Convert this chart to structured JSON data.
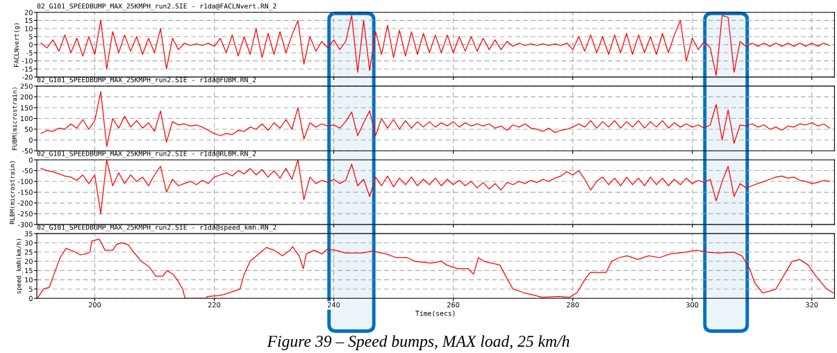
{
  "chart_data": [
    {
      "type": "line",
      "title": "02_G101_SPEEDBUMP_MAX_25KMPH_run2.SIE - r1da@FACLNvert.RN_2",
      "ylabel": "FACLNvert(g)",
      "x": [
        191,
        192,
        193,
        194,
        195,
        196,
        197,
        198,
        199,
        200,
        201,
        202,
        203,
        204,
        205,
        206,
        207,
        208,
        209,
        210,
        211,
        212,
        213,
        214,
        215,
        216,
        217,
        218,
        219,
        220,
        221,
        222,
        223,
        224,
        225,
        226,
        227,
        228,
        229,
        230,
        231,
        232,
        233,
        234,
        235,
        236,
        237,
        238,
        239,
        240,
        241,
        242,
        243,
        244,
        245,
        246,
        247,
        248,
        249,
        250,
        251,
        252,
        253,
        254,
        255,
        256,
        257,
        258,
        259,
        260,
        261,
        262,
        263,
        264,
        265,
        266,
        267,
        268,
        269,
        270,
        271,
        272,
        273,
        274,
        275,
        276,
        277,
        278,
        279,
        280,
        281,
        282,
        283,
        284,
        285,
        286,
        287,
        288,
        289,
        290,
        291,
        292,
        293,
        294,
        295,
        296,
        297,
        298,
        299,
        300,
        301,
        302,
        303,
        304,
        305,
        306,
        307,
        308,
        309,
        310,
        311,
        312,
        313,
        314,
        315,
        316,
        317,
        318,
        319,
        320,
        321,
        322,
        323
      ],
      "series": [
        {
          "color": "#ff0000",
          "values": [
            1,
            -2,
            3,
            -4,
            6,
            -5,
            4,
            -7,
            5,
            -6,
            15,
            -15,
            8,
            -5,
            6,
            -4,
            5,
            -6,
            4,
            -5,
            10,
            -15,
            4,
            -3,
            1,
            -0.5,
            0.5,
            -0.5,
            1,
            -1,
            4,
            -5,
            6,
            -7,
            5,
            -6,
            10,
            -8,
            7,
            -6,
            8,
            -5,
            6,
            15,
            -12,
            5,
            -4,
            2,
            -2,
            3,
            -3,
            2,
            18,
            -17,
            15,
            -16,
            8,
            -6,
            12,
            -8,
            9,
            -7,
            8,
            -6,
            7,
            -5,
            6,
            -5,
            6,
            -5,
            5,
            -4,
            5,
            -4,
            4,
            -3,
            3,
            -3,
            2,
            -1,
            1,
            -0.5,
            0.5,
            -0.5,
            0.5,
            -0.5,
            0.5,
            -0.5,
            1,
            -3,
            5,
            -4,
            6,
            -5,
            5,
            -6,
            6,
            -5,
            7,
            -6,
            6,
            -5,
            5,
            -6,
            7,
            -5,
            6,
            15,
            -10,
            4,
            -3,
            2,
            -2,
            -19,
            18,
            17,
            -17,
            2,
            -1,
            1,
            -1,
            1,
            -1,
            1,
            -1,
            1,
            -1,
            1,
            -1,
            1,
            -1,
            1,
            -0.5
          ]
        }
      ],
      "xlim": [
        190.3,
        323.8
      ],
      "xticks": [
        200,
        220,
        240,
        260,
        280,
        300,
        320
      ],
      "ylim": [
        -20,
        20
      ],
      "yticks": [
        -20,
        -15,
        -10,
        -5,
        0,
        5,
        10,
        15,
        20
      ],
      "grid": true,
      "tick_labels": "y",
      "bands": [
        {
          "axis": "x",
          "from": 239.2,
          "to": 246.7,
          "color": "#0070c0"
        },
        {
          "axis": "x",
          "from": 302.1,
          "to": 309.2,
          "color": "#0070c0"
        }
      ]
    },
    {
      "type": "line",
      "title": "02_G101_SPEEDBUMP_MAX_25KMPH_run2.SIE - r1da@FUBM.RN_2",
      "ylabel": "FUBM(microstrain)",
      "x": [
        191,
        192,
        193,
        194,
        195,
        196,
        197,
        198,
        199,
        200,
        201,
        202,
        203,
        204,
        205,
        206,
        207,
        208,
        209,
        210,
        211,
        212,
        213,
        214,
        215,
        216,
        217,
        218,
        219,
        220,
        221,
        222,
        223,
        224,
        225,
        226,
        227,
        228,
        229,
        230,
        231,
        232,
        233,
        234,
        235,
        236,
        237,
        238,
        239,
        240,
        241,
        242,
        243,
        244,
        245,
        246,
        247,
        248,
        249,
        250,
        251,
        252,
        253,
        254,
        255,
        256,
        257,
        258,
        259,
        260,
        261,
        262,
        263,
        264,
        265,
        266,
        267,
        268,
        269,
        270,
        271,
        272,
        273,
        274,
        275,
        276,
        277,
        278,
        279,
        280,
        281,
        282,
        283,
        284,
        285,
        286,
        287,
        288,
        289,
        290,
        291,
        292,
        293,
        294,
        295,
        296,
        297,
        298,
        299,
        300,
        301,
        302,
        303,
        304,
        305,
        306,
        307,
        308,
        309,
        310,
        311,
        312,
        313,
        314,
        315,
        316,
        317,
        318,
        319,
        320,
        321,
        322,
        323
      ],
      "series": [
        {
          "color": "#ff0000",
          "values": [
            30,
            45,
            40,
            55,
            50,
            75,
            55,
            95,
            50,
            90,
            225,
            -30,
            100,
            55,
            110,
            60,
            90,
            55,
            80,
            40,
            135,
            -10,
            85,
            70,
            75,
            65,
            70,
            60,
            45,
            30,
            20,
            30,
            25,
            45,
            40,
            60,
            50,
            75,
            45,
            80,
            55,
            95,
            50,
            150,
            5,
            80,
            60,
            75,
            65,
            70,
            55,
            85,
            130,
            20,
            80,
            135,
            20,
            100,
            55,
            95,
            50,
            90,
            55,
            85,
            60,
            85,
            60,
            80,
            65,
            85,
            60,
            80,
            65,
            75,
            65,
            75,
            55,
            65,
            45,
            70,
            60,
            75,
            55,
            50,
            40,
            55,
            35,
            45,
            50,
            60,
            75,
            60,
            90,
            55,
            85,
            60,
            90,
            55,
            85,
            60,
            90,
            55,
            85,
            60,
            90,
            55,
            80,
            60,
            75,
            60,
            70,
            55,
            70,
            165,
            0,
            140,
            -15,
            70,
            65,
            75,
            60,
            70,
            50,
            60,
            45,
            65,
            60,
            75,
            70,
            80,
            65,
            75,
            55
          ]
        }
      ],
      "xlim": [
        190.3,
        323.8
      ],
      "xticks": [
        200,
        220,
        240,
        260,
        280,
        300,
        320
      ],
      "ylim": [
        -50,
        250
      ],
      "yticks": [
        -50,
        0,
        50,
        100,
        150,
        200,
        250
      ],
      "grid": true,
      "tick_labels": "y"
    },
    {
      "type": "line",
      "title": "02_G101_SPEEDBUMP_MAX_25KMPH_run2.SIE - r1da@RLBM.RN_2",
      "ylabel": "RLBM(microstrain)",
      "x": [
        191,
        192,
        193,
        194,
        195,
        196,
        197,
        198,
        199,
        200,
        201,
        202,
        203,
        204,
        205,
        206,
        207,
        208,
        209,
        210,
        211,
        212,
        213,
        214,
        215,
        216,
        217,
        218,
        219,
        220,
        221,
        222,
        223,
        224,
        225,
        226,
        227,
        228,
        229,
        230,
        231,
        232,
        233,
        234,
        235,
        236,
        237,
        238,
        239,
        240,
        241,
        242,
        243,
        244,
        245,
        246,
        247,
        248,
        249,
        250,
        251,
        252,
        253,
        254,
        255,
        256,
        257,
        258,
        259,
        260,
        261,
        262,
        263,
        264,
        265,
        266,
        267,
        268,
        269,
        270,
        271,
        272,
        273,
        274,
        275,
        276,
        277,
        278,
        279,
        280,
        281,
        282,
        283,
        284,
        285,
        286,
        287,
        288,
        289,
        290,
        291,
        292,
        293,
        294,
        295,
        296,
        297,
        298,
        299,
        300,
        301,
        302,
        303,
        304,
        305,
        306,
        307,
        308,
        309,
        310,
        311,
        312,
        313,
        314,
        315,
        316,
        317,
        318,
        319,
        320,
        321,
        322,
        323
      ],
      "series": [
        {
          "color": "#ff0000",
          "values": [
            -40,
            -50,
            -55,
            -65,
            -75,
            -80,
            -95,
            -70,
            -110,
            -70,
            -250,
            0,
            -120,
            -60,
            -110,
            -70,
            -100,
            -80,
            -120,
            -70,
            -30,
            -150,
            -90,
            -120,
            -110,
            -100,
            -115,
            -95,
            -110,
            -80,
            -70,
            -60,
            -75,
            -50,
            -65,
            -40,
            -70,
            -45,
            -80,
            -50,
            -85,
            -40,
            -90,
            0,
            -185,
            -80,
            -110,
            -95,
            -105,
            -90,
            -110,
            -95,
            -20,
            -120,
            -90,
            -170,
            -80,
            -120,
            -75,
            -125,
            -85,
            -115,
            -80,
            -120,
            -90,
            -115,
            -85,
            -120,
            -90,
            -115,
            -95,
            -120,
            -100,
            -130,
            -105,
            -135,
            -110,
            -140,
            -105,
            -115,
            -100,
            -110,
            -95,
            -105,
            -90,
            -100,
            -85,
            -75,
            -55,
            -70,
            -50,
            -90,
            -140,
            -100,
            -80,
            -115,
            -85,
            -120,
            -80,
            -115,
            -85,
            -120,
            -80,
            -115,
            -85,
            -120,
            -90,
            -115,
            -85,
            -110,
            -95,
            -105,
            -90,
            -190,
            -100,
            -30,
            -170,
            -110,
            -130,
            -120,
            -110,
            -100,
            -90,
            -80,
            -75,
            -85,
            -80,
            -95,
            -100,
            -110,
            -105,
            -95,
            -100
          ]
        }
      ],
      "xlim": [
        190.3,
        323.8
      ],
      "xticks": [
        200,
        220,
        240,
        260,
        280,
        300,
        320
      ],
      "ylim": [
        -300,
        0
      ],
      "yticks": [
        -300,
        -250,
        -200,
        -150,
        -100,
        -50,
        0
      ],
      "grid": true,
      "tick_labels": "y"
    },
    {
      "type": "line",
      "title": "02_G101_SPEEDBUMP_MAX_25KMPH_run2.SIE - r1da@speed_kmh.RN_2",
      "ylabel": "speed_kmh(km/h)",
      "xlabel": "Time(secs)",
      "x": [
        190.4,
        191.4,
        192.4,
        193.4,
        194.2,
        195.2,
        196.7,
        197.6,
        198.5,
        199.2,
        199.5,
        200.7,
        201.1,
        201.7,
        203,
        203.6,
        204.5,
        205.6,
        206.5,
        207.8,
        209.1,
        210.2,
        211.4,
        212.1,
        213.1,
        214,
        214.7,
        215.1,
        218.5,
        218.9,
        220.7,
        221.6,
        223.4,
        224.3,
        225,
        226,
        227.8,
        228.7,
        230,
        231.4,
        232.7,
        233.1,
        234.2,
        234.9,
        235.4,
        236.7,
        238,
        238.9,
        240.3,
        242,
        244.7,
        246.5,
        248.7,
        250.5,
        252.3,
        253.6,
        256.3,
        258,
        258.9,
        260.7,
        262.5,
        263.4,
        264.2,
        265.1,
        267.8,
        269.1,
        270,
        271.8,
        273.1,
        274.9,
        277.6,
        279.4,
        280.7,
        282,
        282.9,
        285.6,
        286.5,
        287.8,
        289.1,
        290.9,
        292.7,
        294.5,
        296.3,
        298.9,
        300.7,
        302.5,
        304.3,
        306.9,
        308.3,
        309.6,
        310.5,
        311.8,
        313.1,
        314,
        315.8,
        316.7,
        318,
        319.4,
        320.7,
        322.5,
        323.6
      ],
      "series": [
        {
          "color": "#ff0000",
          "values": [
            0,
            5,
            6,
            15,
            22,
            27,
            25,
            23.5,
            24,
            25,
            31,
            32,
            30,
            26,
            26,
            29,
            30,
            29,
            25,
            20,
            17,
            12,
            12,
            15,
            13,
            9,
            5,
            0,
            0,
            1,
            1.5,
            2,
            4,
            5,
            13,
            20,
            25,
            27.5,
            26,
            23,
            26,
            28,
            23,
            16,
            24,
            26,
            24,
            26.5,
            26,
            24.5,
            24.5,
            25.5,
            24,
            22,
            22,
            20,
            19,
            20,
            18,
            16,
            16,
            13,
            22,
            20,
            18,
            10,
            5,
            3,
            2,
            0.5,
            1,
            0.5,
            3,
            10,
            14,
            14,
            20,
            22,
            23,
            21,
            23,
            22,
            24,
            25,
            26,
            25,
            24.5,
            25,
            23,
            16,
            8,
            3,
            4,
            5,
            15,
            20,
            21,
            18,
            12,
            5,
            3
          ]
        }
      ],
      "xlim": [
        190.3,
        323.8
      ],
      "xticks": [
        200,
        220,
        240,
        260,
        280,
        300,
        320
      ],
      "ylim": [
        0,
        35
      ],
      "yticks": [
        0,
        5,
        10,
        15,
        20,
        25,
        30,
        35
      ],
      "grid": true,
      "annotations": [
        "Figure 39 – Speed bumps, MAX load, 25 km/h"
      ]
    }
  ]
}
